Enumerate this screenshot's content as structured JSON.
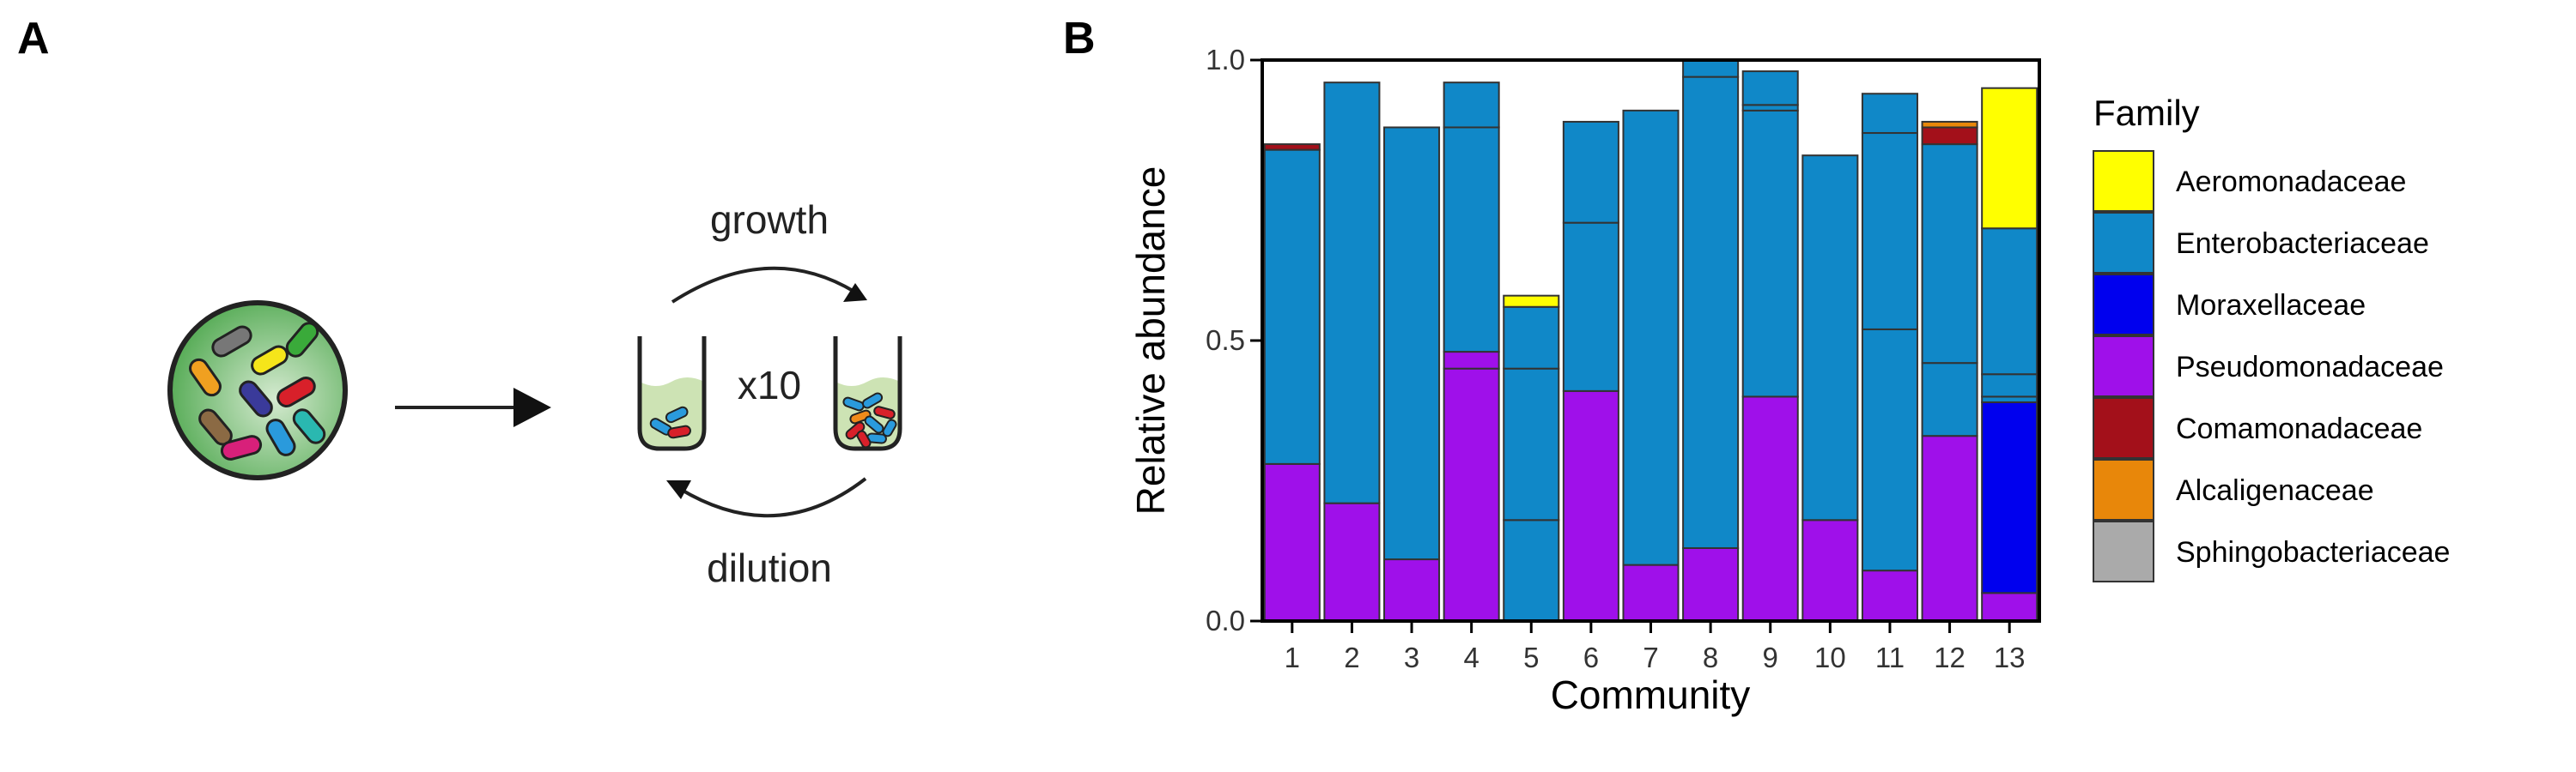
{
  "panels": {
    "a_label": "A",
    "b_label": "B"
  },
  "schematic": {
    "growth": "growth",
    "dilution": "dilution",
    "multiplier": "x10"
  },
  "colors": {
    "Aeromonadaceae": "#ffff00",
    "Enterobacteriaceae": "#1088c8",
    "Moraxellaceae": "#0000ee",
    "Pseudomonadaceae": "#9f10ea",
    "Comamonadaceae": "#a3101a",
    "Alcaligenaceae": "#e8870a",
    "Sphingobacteriaceae": "#aaaaaa",
    "culture_bg": "#4fa84f",
    "tube_liquid": "#cde3b4"
  },
  "chart_data": {
    "type": "bar",
    "stacked": true,
    "xlabel": "Community",
    "ylabel": "Relative abundance",
    "categories": [
      "1",
      "2",
      "3",
      "4",
      "5",
      "6",
      "7",
      "8",
      "9",
      "10",
      "11",
      "12",
      "13"
    ],
    "ylim": [
      0,
      1.0
    ],
    "yticks": [
      "0.0",
      "0.5",
      "1.0"
    ],
    "legend_title": "Family",
    "legend_position": "right",
    "legend": [
      "Aeromonadaceae",
      "Enterobacteriaceae",
      "Moraxellaceae",
      "Pseudomonadaceae",
      "Comamonadaceae",
      "Alcaligenaceae",
      "Sphingobacteriaceae"
    ],
    "bars": [
      {
        "category": "1",
        "segments": [
          {
            "family": "Pseudomonadaceae",
            "value": 0.28
          },
          {
            "family": "Enterobacteriaceae",
            "value": 0.56
          },
          {
            "family": "Comamonadaceae",
            "value": 0.01
          }
        ]
      },
      {
        "category": "2",
        "segments": [
          {
            "family": "Pseudomonadaceae",
            "value": 0.21
          },
          {
            "family": "Enterobacteriaceae",
            "value": 0.75
          }
        ]
      },
      {
        "category": "3",
        "segments": [
          {
            "family": "Pseudomonadaceae",
            "value": 0.11
          },
          {
            "family": "Enterobacteriaceae",
            "value": 0.77
          }
        ]
      },
      {
        "category": "4",
        "segments": [
          {
            "family": "Pseudomonadaceae",
            "value": 0.45
          },
          {
            "family": "Pseudomonadaceae",
            "value": 0.03
          },
          {
            "family": "Enterobacteriaceae",
            "value": 0.4
          },
          {
            "family": "Enterobacteriaceae",
            "value": 0.08
          }
        ]
      },
      {
        "category": "5",
        "segments": [
          {
            "family": "Enterobacteriaceae",
            "value": 0.18
          },
          {
            "family": "Enterobacteriaceae",
            "value": 0.27
          },
          {
            "family": "Enterobacteriaceae",
            "value": 0.11
          },
          {
            "family": "Aeromonadaceae",
            "value": 0.02
          }
        ]
      },
      {
        "category": "6",
        "segments": [
          {
            "family": "Pseudomonadaceae",
            "value": 0.41
          },
          {
            "family": "Enterobacteriaceae",
            "value": 0.3
          },
          {
            "family": "Enterobacteriaceae",
            "value": 0.18
          }
        ]
      },
      {
        "category": "7",
        "segments": [
          {
            "family": "Pseudomonadaceae",
            "value": 0.1
          },
          {
            "family": "Enterobacteriaceae",
            "value": 0.81
          }
        ]
      },
      {
        "category": "8",
        "segments": [
          {
            "family": "Pseudomonadaceae",
            "value": 0.13
          },
          {
            "family": "Enterobacteriaceae",
            "value": 0.84
          },
          {
            "family": "Enterobacteriaceae",
            "value": 0.03
          }
        ]
      },
      {
        "category": "9",
        "segments": [
          {
            "family": "Pseudomonadaceae",
            "value": 0.4
          },
          {
            "family": "Enterobacteriaceae",
            "value": 0.51
          },
          {
            "family": "Enterobacteriaceae",
            "value": 0.01
          },
          {
            "family": "Enterobacteriaceae",
            "value": 0.06
          }
        ]
      },
      {
        "category": "10",
        "segments": [
          {
            "family": "Pseudomonadaceae",
            "value": 0.18
          },
          {
            "family": "Enterobacteriaceae",
            "value": 0.65
          }
        ]
      },
      {
        "category": "11",
        "segments": [
          {
            "family": "Pseudomonadaceae",
            "value": 0.09
          },
          {
            "family": "Enterobacteriaceae",
            "value": 0.43
          },
          {
            "family": "Enterobacteriaceae",
            "value": 0.35
          },
          {
            "family": "Enterobacteriaceae",
            "value": 0.07
          }
        ]
      },
      {
        "category": "12",
        "segments": [
          {
            "family": "Pseudomonadaceae",
            "value": 0.33
          },
          {
            "family": "Enterobacteriaceae",
            "value": 0.13
          },
          {
            "family": "Enterobacteriaceae",
            "value": 0.39
          },
          {
            "family": "Comamonadaceae",
            "value": 0.03
          },
          {
            "family": "Alcaligenaceae",
            "value": 0.01
          }
        ]
      },
      {
        "category": "13",
        "segments": [
          {
            "family": "Pseudomonadaceae",
            "value": 0.05
          },
          {
            "family": "Moraxellaceae",
            "value": 0.34
          },
          {
            "family": "Enterobacteriaceae",
            "value": 0.01
          },
          {
            "family": "Enterobacteriaceae",
            "value": 0.04
          },
          {
            "family": "Enterobacteriaceae",
            "value": 0.26
          },
          {
            "family": "Aeromonadaceae",
            "value": 0.25
          }
        ]
      }
    ]
  }
}
